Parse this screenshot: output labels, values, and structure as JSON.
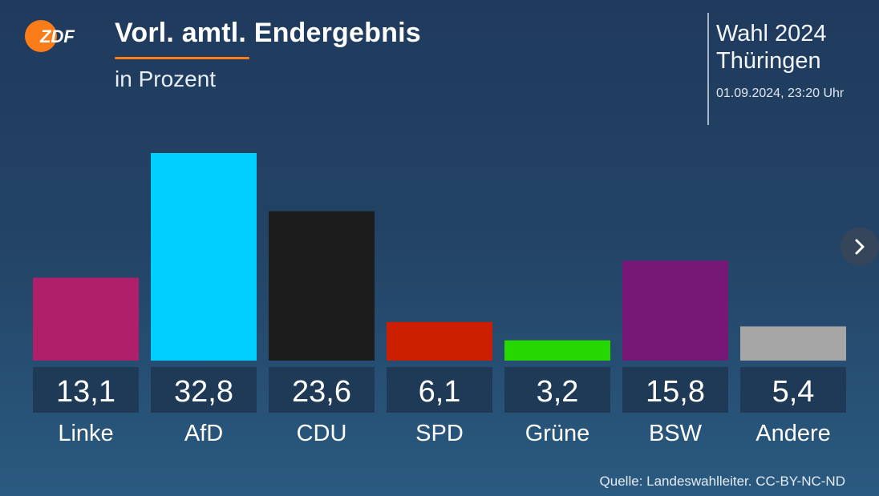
{
  "brand": {
    "logo_text": "ZDF",
    "accent_color": "#fa7d19"
  },
  "header": {
    "title": "Vorl. amtl. Endergebnis",
    "subtitle": "in Prozent",
    "election_line1": "Wahl 2024",
    "election_line2": "Thüringen",
    "timestamp": "01.09.2024, 23:20 Uhr"
  },
  "footer": {
    "source": "Quelle: Landeswahlleiter. CC-BY-NC-ND"
  },
  "navigation": {
    "next_icon": "chevron-right-icon"
  },
  "chart_data": {
    "type": "bar",
    "categories": [
      "Linke",
      "AfD",
      "CDU",
      "SPD",
      "Grüne",
      "BSW",
      "Andere"
    ],
    "values": [
      13.1,
      32.8,
      23.6,
      6.1,
      3.2,
      15.8,
      5.4
    ],
    "value_labels": [
      "13,1",
      "32,8",
      "23,6",
      "6,1",
      "3,2",
      "15,8",
      "5,4"
    ],
    "colors": [
      "#b01f69",
      "#00d0ff",
      "#1c1c1c",
      "#cc1f00",
      "#26d800",
      "#771877",
      "#a6a6a6"
    ],
    "label_box_color": "#1e3a56",
    "ylim": [
      0,
      33
    ],
    "grid": false
  }
}
